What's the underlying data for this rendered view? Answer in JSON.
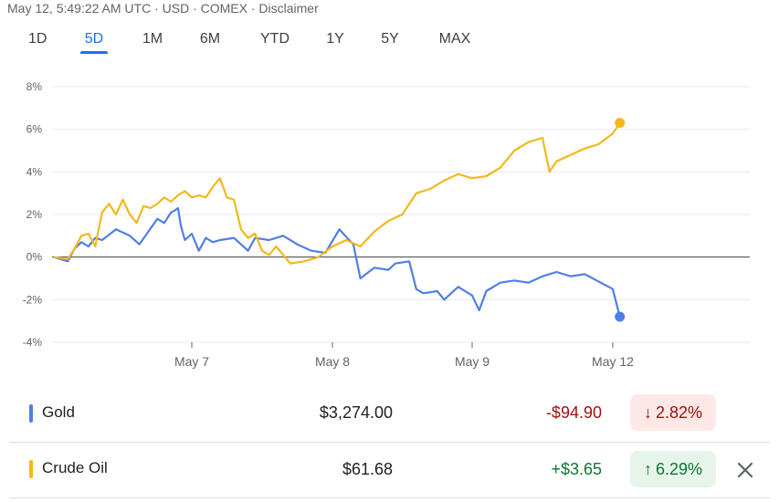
{
  "header": {
    "text": "May 12, 5:49:22 AM UTC · USD · COMEX · Disclaimer"
  },
  "tabs": [
    {
      "label": "1D",
      "active": false
    },
    {
      "label": "5D",
      "active": true
    },
    {
      "label": "1M",
      "active": false
    },
    {
      "label": "6M",
      "active": false
    },
    {
      "label": "YTD",
      "active": false
    },
    {
      "label": "1Y",
      "active": false
    },
    {
      "label": "5Y",
      "active": false
    },
    {
      "label": "MAX",
      "active": false
    }
  ],
  "colors": {
    "gold": "#4f7fe6",
    "crude": "#f2b81c",
    "negative": "#a50e0e",
    "negative_bg": "#fce8e6",
    "positive": "#137333",
    "positive_bg": "#e6f4ea",
    "active_tab": "#1a73e8"
  },
  "chart_data": {
    "type": "line",
    "title": "",
    "xlabel": "",
    "ylabel": "",
    "x_ticks": [
      "May 7",
      "May 8",
      "May 9",
      "May 12"
    ],
    "y_ticks": [
      "8%",
      "6%",
      "4%",
      "2%",
      "0%",
      "-2%",
      "-4%"
    ],
    "ylim": [
      -4,
      8
    ],
    "grid": true,
    "series": [
      {
        "name": "Gold",
        "color": "#4f7fe6",
        "points": [
          [
            0.0,
            0.0
          ],
          [
            0.1,
            -0.2
          ],
          [
            0.15,
            0.4
          ],
          [
            0.2,
            0.7
          ],
          [
            0.25,
            0.5
          ],
          [
            0.3,
            0.9
          ],
          [
            0.35,
            0.8
          ],
          [
            0.45,
            1.3
          ],
          [
            0.55,
            1.0
          ],
          [
            0.62,
            0.6
          ],
          [
            0.75,
            1.8
          ],
          [
            0.8,
            1.6
          ],
          [
            0.85,
            2.1
          ],
          [
            0.88,
            2.2
          ],
          [
            0.9,
            2.3
          ],
          [
            0.92,
            1.5
          ],
          [
            0.95,
            0.8
          ],
          [
            1.0,
            1.1
          ],
          [
            1.05,
            0.3
          ],
          [
            1.1,
            0.9
          ],
          [
            1.15,
            0.7
          ],
          [
            1.2,
            0.8
          ],
          [
            1.3,
            0.9
          ],
          [
            1.35,
            0.6
          ],
          [
            1.4,
            0.3
          ],
          [
            1.45,
            0.9
          ],
          [
            1.55,
            0.8
          ],
          [
            1.65,
            1.0
          ],
          [
            1.75,
            0.6
          ],
          [
            1.85,
            0.3
          ],
          [
            1.95,
            0.2
          ],
          [
            2.05,
            1.3
          ],
          [
            2.12,
            0.8
          ],
          [
            2.15,
            0.6
          ],
          [
            2.2,
            -1.0
          ],
          [
            2.3,
            -0.5
          ],
          [
            2.4,
            -0.6
          ],
          [
            2.45,
            -0.3
          ],
          [
            2.55,
            -0.2
          ],
          [
            2.6,
            -1.5
          ],
          [
            2.65,
            -1.7
          ],
          [
            2.75,
            -1.6
          ],
          [
            2.8,
            -2.0
          ],
          [
            2.9,
            -1.4
          ],
          [
            3.0,
            -1.8
          ],
          [
            3.05,
            -2.5
          ],
          [
            3.1,
            -1.6
          ],
          [
            3.2,
            -1.2
          ],
          [
            3.3,
            -1.1
          ],
          [
            3.4,
            -1.2
          ],
          [
            3.5,
            -0.9
          ],
          [
            3.6,
            -0.7
          ],
          [
            3.7,
            -0.9
          ],
          [
            3.8,
            -0.8
          ],
          [
            4.0,
            -1.5
          ],
          [
            4.05,
            -2.8
          ]
        ]
      },
      {
        "name": "Crude Oil",
        "color": "#f2b81c",
        "points": [
          [
            0.0,
            0.0
          ],
          [
            0.1,
            -0.1
          ],
          [
            0.15,
            0.4
          ],
          [
            0.2,
            1.0
          ],
          [
            0.25,
            1.1
          ],
          [
            0.3,
            0.5
          ],
          [
            0.35,
            2.1
          ],
          [
            0.4,
            2.5
          ],
          [
            0.45,
            2.0
          ],
          [
            0.5,
            2.7
          ],
          [
            0.55,
            2.0
          ],
          [
            0.6,
            1.6
          ],
          [
            0.65,
            2.4
          ],
          [
            0.7,
            2.3
          ],
          [
            0.75,
            2.5
          ],
          [
            0.8,
            2.8
          ],
          [
            0.85,
            2.6
          ],
          [
            0.9,
            2.9
          ],
          [
            0.95,
            3.1
          ],
          [
            1.0,
            2.8
          ],
          [
            1.05,
            2.9
          ],
          [
            1.1,
            2.8
          ],
          [
            1.15,
            3.3
          ],
          [
            1.2,
            3.7
          ],
          [
            1.25,
            2.8
          ],
          [
            1.3,
            2.7
          ],
          [
            1.35,
            1.3
          ],
          [
            1.4,
            0.9
          ],
          [
            1.45,
            1.1
          ],
          [
            1.5,
            0.3
          ],
          [
            1.55,
            0.1
          ],
          [
            1.6,
            0.5
          ],
          [
            1.7,
            -0.3
          ],
          [
            1.8,
            -0.2
          ],
          [
            1.9,
            0.0
          ],
          [
            2.0,
            0.5
          ],
          [
            2.1,
            0.8
          ],
          [
            2.2,
            0.5
          ],
          [
            2.3,
            1.2
          ],
          [
            2.4,
            1.7
          ],
          [
            2.5,
            2.0
          ],
          [
            2.6,
            3.0
          ],
          [
            2.7,
            3.2
          ],
          [
            2.8,
            3.6
          ],
          [
            2.9,
            3.9
          ],
          [
            3.0,
            3.7
          ],
          [
            3.1,
            3.8
          ],
          [
            3.2,
            4.2
          ],
          [
            3.3,
            5.0
          ],
          [
            3.4,
            5.4
          ],
          [
            3.5,
            5.6
          ],
          [
            3.55,
            4.0
          ],
          [
            3.6,
            4.5
          ],
          [
            3.7,
            4.8
          ],
          [
            3.8,
            5.1
          ],
          [
            3.9,
            5.3
          ],
          [
            4.0,
            5.8
          ],
          [
            4.05,
            6.3
          ]
        ]
      }
    ]
  },
  "legend": [
    {
      "name": "Gold",
      "price": "$3,274.00",
      "change": "-$94.90",
      "percent": "2.82%",
      "direction": "down",
      "arrow": "↓"
    },
    {
      "name": "Crude Oil",
      "price": "$61.68",
      "change": "+$3.65",
      "percent": "6.29%",
      "direction": "up",
      "arrow": "↑",
      "close_icon": "close-icon"
    }
  ]
}
